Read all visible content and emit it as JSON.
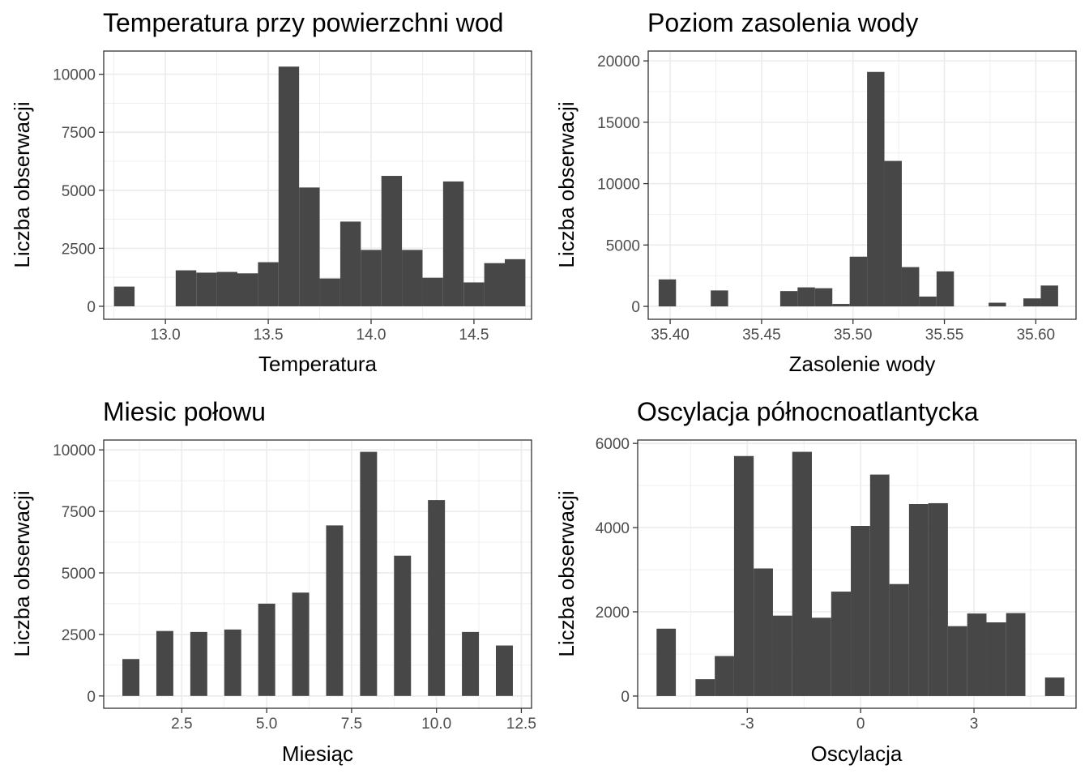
{
  "chart_data": [
    {
      "type": "bar",
      "title": "Temperatura przy powierzchni wod",
      "xlabel": "Temperatura",
      "ylabel": "Liczba obserwacji",
      "xlim": [
        12.7,
        14.78
      ],
      "ylim": [
        -560,
        11000
      ],
      "grid": true,
      "xticks": [
        {
          "value": 13.0,
          "label": "13.0"
        },
        {
          "value": 13.5,
          "label": "13.5"
        },
        {
          "value": 14.0,
          "label": "14.0"
        },
        {
          "value": 14.5,
          "label": "14.5"
        }
      ],
      "yticks": [
        {
          "value": 0,
          "label": "0"
        },
        {
          "value": 2500,
          "label": "2500"
        },
        {
          "value": 5000,
          "label": "5000"
        },
        {
          "value": 7500,
          "label": "7500"
        },
        {
          "value": 10000,
          "label": "10000"
        }
      ],
      "bars": [
        {
          "x0": 12.75,
          "x1": 12.85,
          "value": 850
        },
        {
          "x0": 13.05,
          "x1": 13.15,
          "value": 1550
        },
        {
          "x0": 13.15,
          "x1": 13.25,
          "value": 1450
        },
        {
          "x0": 13.25,
          "x1": 13.35,
          "value": 1480
        },
        {
          "x0": 13.35,
          "x1": 13.45,
          "value": 1420
        },
        {
          "x0": 13.45,
          "x1": 13.55,
          "value": 1900
        },
        {
          "x0": 13.55,
          "x1": 13.65,
          "value": 10330
        },
        {
          "x0": 13.65,
          "x1": 13.75,
          "value": 5120
        },
        {
          "x0": 13.75,
          "x1": 13.85,
          "value": 1200
        },
        {
          "x0": 13.85,
          "x1": 13.95,
          "value": 3650
        },
        {
          "x0": 13.95,
          "x1": 14.05,
          "value": 2430
        },
        {
          "x0": 14.05,
          "x1": 14.15,
          "value": 5620
        },
        {
          "x0": 14.15,
          "x1": 14.25,
          "value": 2430
        },
        {
          "x0": 14.25,
          "x1": 14.35,
          "value": 1230
        },
        {
          "x0": 14.35,
          "x1": 14.45,
          "value": 5380
        },
        {
          "x0": 14.45,
          "x1": 14.55,
          "value": 1030
        },
        {
          "x0": 14.55,
          "x1": 14.65,
          "value": 1860
        },
        {
          "x0": 14.65,
          "x1": 14.75,
          "value": 2030
        }
      ]
    },
    {
      "type": "bar",
      "title": "Poziom zasolenia wody",
      "xlabel": "Zasolenie wody",
      "ylabel": "Liczba obserwacji",
      "xlim": [
        35.388,
        35.622
      ],
      "ylim": [
        -1050,
        20800
      ],
      "grid": true,
      "xticks": [
        {
          "value": 35.4,
          "label": "35.40"
        },
        {
          "value": 35.45,
          "label": "35.45"
        },
        {
          "value": 35.5,
          "label": "35.50"
        },
        {
          "value": 35.55,
          "label": "35.55"
        },
        {
          "value": 35.6,
          "label": "35.60"
        }
      ],
      "yticks": [
        {
          "value": 0,
          "label": "0"
        },
        {
          "value": 5000,
          "label": "5000"
        },
        {
          "value": 10000,
          "label": "10000"
        },
        {
          "value": 15000,
          "label": "15000"
        },
        {
          "value": 20000,
          "label": "20000"
        }
      ],
      "bars": [
        {
          "x0": 35.3937,
          "x1": 35.4032,
          "value": 2200
        },
        {
          "x0": 35.4222,
          "x1": 35.4317,
          "value": 1300
        },
        {
          "x0": 35.4602,
          "x1": 35.4697,
          "value": 1250
        },
        {
          "x0": 35.4697,
          "x1": 35.4792,
          "value": 1550
        },
        {
          "x0": 35.4792,
          "x1": 35.4887,
          "value": 1480
        },
        {
          "x0": 35.4887,
          "x1": 35.4982,
          "value": 200
        },
        {
          "x0": 35.4982,
          "x1": 35.5077,
          "value": 4050
        },
        {
          "x0": 35.5077,
          "x1": 35.5172,
          "value": 19100
        },
        {
          "x0": 35.5172,
          "x1": 35.5267,
          "value": 11850
        },
        {
          "x0": 35.5267,
          "x1": 35.5362,
          "value": 3200
        },
        {
          "x0": 35.5362,
          "x1": 35.5457,
          "value": 800
        },
        {
          "x0": 35.5457,
          "x1": 35.5552,
          "value": 2850
        },
        {
          "x0": 35.5742,
          "x1": 35.5837,
          "value": 300
        },
        {
          "x0": 35.5932,
          "x1": 35.6027,
          "value": 650
        },
        {
          "x0": 35.6027,
          "x1": 35.6122,
          "value": 1700
        }
      ]
    },
    {
      "type": "bar",
      "title": "Miesic połowu",
      "xlabel": "Miesiąc",
      "ylabel": "Liczba obserwacji",
      "xlim": [
        0.2,
        12.8
      ],
      "ylim": [
        -500,
        10400
      ],
      "grid": true,
      "xticks": [
        {
          "value": 2.5,
          "label": "2.5"
        },
        {
          "value": 5.0,
          "label": "5.0"
        },
        {
          "value": 7.5,
          "label": "7.5"
        },
        {
          "value": 10.0,
          "label": "10.0"
        },
        {
          "value": 12.5,
          "label": "12.5"
        }
      ],
      "yticks": [
        {
          "value": 0,
          "label": "0"
        },
        {
          "value": 2500,
          "label": "2500"
        },
        {
          "value": 5000,
          "label": "5000"
        },
        {
          "value": 7500,
          "label": "7500"
        },
        {
          "value": 10000,
          "label": "10000"
        }
      ],
      "bars": [
        {
          "x0": 0.75,
          "x1": 1.25,
          "value": 1500
        },
        {
          "x0": 1.75,
          "x1": 2.25,
          "value": 2640
        },
        {
          "x0": 2.75,
          "x1": 3.25,
          "value": 2600
        },
        {
          "x0": 3.75,
          "x1": 4.25,
          "value": 2700
        },
        {
          "x0": 4.75,
          "x1": 5.25,
          "value": 3750
        },
        {
          "x0": 5.75,
          "x1": 6.25,
          "value": 4200
        },
        {
          "x0": 6.75,
          "x1": 7.25,
          "value": 6930
        },
        {
          "x0": 7.75,
          "x1": 8.25,
          "value": 9920
        },
        {
          "x0": 8.75,
          "x1": 9.25,
          "value": 5700
        },
        {
          "x0": 9.75,
          "x1": 10.25,
          "value": 7960
        },
        {
          "x0": 10.75,
          "x1": 11.25,
          "value": 2600
        },
        {
          "x0": 11.75,
          "x1": 12.25,
          "value": 2050
        }
      ]
    },
    {
      "type": "bar",
      "title": "Oscylacja północnoatlantycka",
      "xlabel": "Oscylacja",
      "ylabel": "Liczba obserwacji",
      "xlim": [
        -5.9,
        5.7
      ],
      "ylim": [
        -290,
        6080
      ],
      "grid": true,
      "xticks": [
        {
          "value": -3,
          "label": "-3"
        },
        {
          "value": 0,
          "label": "0"
        },
        {
          "value": 3,
          "label": "3"
        }
      ],
      "yticks": [
        {
          "value": 0,
          "label": "0"
        },
        {
          "value": 2000,
          "label": "2000"
        },
        {
          "value": 4000,
          "label": "4000"
        },
        {
          "value": 6000,
          "label": "6000"
        }
      ],
      "bars": [
        {
          "x0": -5.4,
          "x1": -4.89,
          "value": 1600
        },
        {
          "x0": -4.37,
          "x1": -3.86,
          "value": 400
        },
        {
          "x0": -3.86,
          "x1": -3.35,
          "value": 950
        },
        {
          "x0": -3.35,
          "x1": -2.83,
          "value": 5700
        },
        {
          "x0": -2.83,
          "x1": -2.32,
          "value": 3030
        },
        {
          "x0": -2.32,
          "x1": -1.81,
          "value": 1910
        },
        {
          "x0": -1.81,
          "x1": -1.29,
          "value": 5800
        },
        {
          "x0": -1.29,
          "x1": -0.78,
          "value": 1860
        },
        {
          "x0": -0.78,
          "x1": -0.26,
          "value": 2480
        },
        {
          "x0": -0.26,
          "x1": 0.25,
          "value": 4040
        },
        {
          "x0": 0.25,
          "x1": 0.76,
          "value": 5260
        },
        {
          "x0": 0.76,
          "x1": 1.28,
          "value": 2660
        },
        {
          "x0": 1.28,
          "x1": 1.79,
          "value": 4560
        },
        {
          "x0": 1.79,
          "x1": 2.31,
          "value": 4580
        },
        {
          "x0": 2.31,
          "x1": 2.82,
          "value": 1660
        },
        {
          "x0": 2.82,
          "x1": 3.33,
          "value": 1960
        },
        {
          "x0": 3.33,
          "x1": 3.85,
          "value": 1750
        },
        {
          "x0": 3.85,
          "x1": 4.36,
          "value": 1970
        },
        {
          "x0": 4.88,
          "x1": 5.39,
          "value": 440
        }
      ]
    }
  ]
}
